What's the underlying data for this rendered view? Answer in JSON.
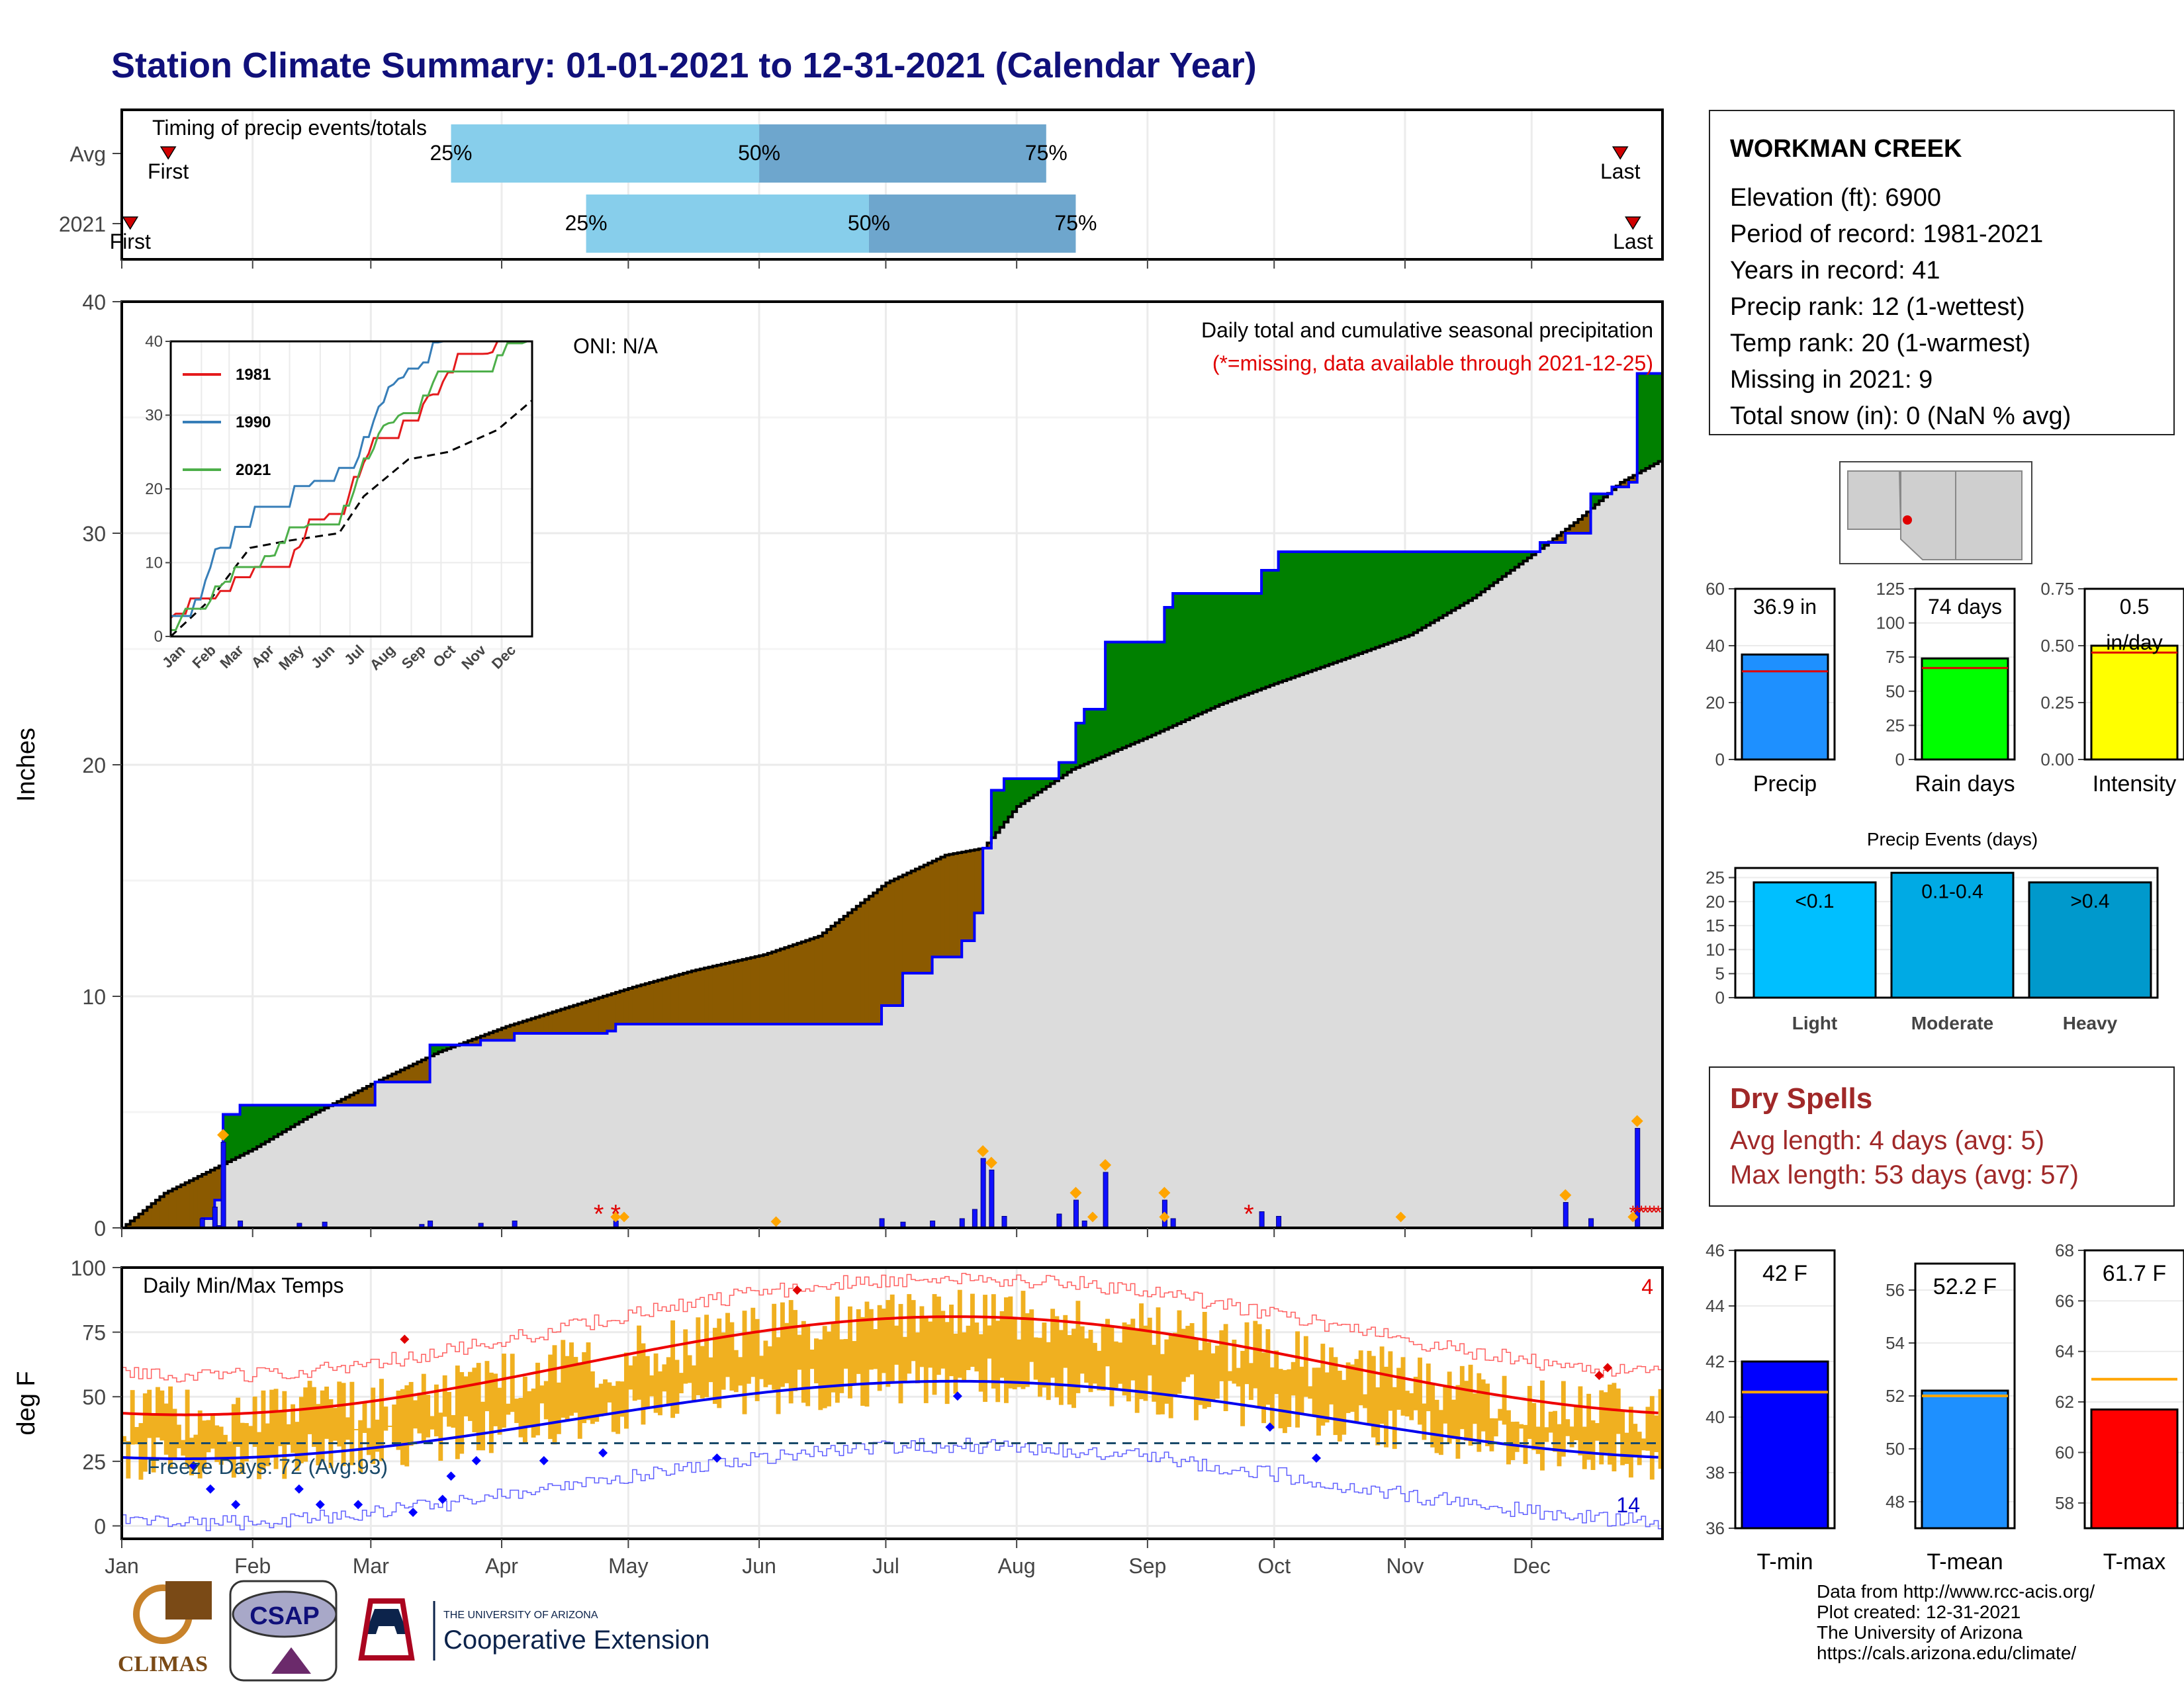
{
  "title": "Station Climate Summary: 01-01-2021 to 12-31-2021 (Calendar Year)",
  "station": {
    "name": "WORKMAN CREEK",
    "elevation": "Elevation (ft): 6900",
    "period": "Period of record: 1981-2021",
    "years": "Years in record: 41",
    "precip_rank": "Precip rank: 12 (1-wettest)",
    "temp_rank": "Temp rank: 20 (1-warmest)",
    "missing": "Missing in 2021: 9",
    "snow": "Total snow (in): 0 (NaN % avg)"
  },
  "dry_spells": {
    "title": "Dry Spells",
    "avg": "Avg length: 4 days (avg: 5)",
    "max": "Max length: 53 days (avg: 57)"
  },
  "credits": [
    "Data from http://www.rcc-acis.org/",
    "Plot created: 12-31-2021",
    "The University of Arizona",
    "https://cals.arizona.edu/climate/"
  ],
  "logos": {
    "climas": "CLIMAS",
    "csap": "CSAP",
    "ua_small": "THE UNIVERSITY OF ARIZONA",
    "ua_big": "Cooperative Extension"
  },
  "colors": {
    "title": "#10107a",
    "wetter": "#008000",
    "drier": "#8b5a00",
    "avg_fill": "#dcdcdc",
    "obs_line": "#0000ff",
    "temp_bar": "#f0b020",
    "dry_text": "#a02828"
  },
  "chart_data": [
    {
      "type": "bar",
      "name": "timing",
      "title": "Timing of precip events/totals",
      "rows": [
        {
          "label": "Avg",
          "first": 11,
          "p25": 78,
          "p50": 151,
          "p75": 219,
          "last": 355,
          "first_label": "First",
          "last_label": "Last"
        },
        {
          "label": "2021",
          "first": 2,
          "p25": 110,
          "p50": 177,
          "p75": 226,
          "last": 358,
          "first_label": "First",
          "last_label": "Last"
        }
      ],
      "pct_labels": [
        "25%",
        "50%",
        "75%"
      ]
    },
    {
      "type": "area",
      "name": "precip",
      "ylabel": "Inches",
      "ylim": [
        0,
        40
      ],
      "yticks": [
        0,
        10,
        20,
        30,
        40
      ],
      "title": "Daily total and cumulative seasonal precipitation",
      "subtitle": "(*=missing, data available through 2021-12-25)",
      "oni": "ONI: N/A",
      "avg_cumulative": [
        [
          0,
          0
        ],
        [
          10,
          1.5
        ],
        [
          31,
          3.4
        ],
        [
          45,
          4.9
        ],
        [
          60,
          6.3
        ],
        [
          75,
          7.6
        ],
        [
          91,
          8.7
        ],
        [
          105,
          9.5
        ],
        [
          121,
          10.4
        ],
        [
          135,
          11.1
        ],
        [
          152,
          11.8
        ],
        [
          165,
          12.6
        ],
        [
          181,
          14.9
        ],
        [
          195,
          16.1
        ],
        [
          204,
          16.4
        ],
        [
          212,
          18.2
        ],
        [
          225,
          19.8
        ],
        [
          243,
          21.2
        ],
        [
          260,
          22.6
        ],
        [
          273,
          23.5
        ],
        [
          290,
          24.6
        ],
        [
          305,
          25.6
        ],
        [
          320,
          27.2
        ],
        [
          335,
          29.2
        ],
        [
          345,
          30.6
        ],
        [
          355,
          32.2
        ],
        [
          364,
          33.1
        ]
      ],
      "obs_cumulative": [
        [
          0,
          0
        ],
        [
          19,
          0.4
        ],
        [
          22,
          1.2
        ],
        [
          24,
          4.9
        ],
        [
          28,
          5.3
        ],
        [
          37,
          5.3
        ],
        [
          60,
          6.3
        ],
        [
          71,
          6.3
        ],
        [
          73,
          7.9
        ],
        [
          85,
          8.1
        ],
        [
          93,
          8.4
        ],
        [
          115,
          8.5
        ],
        [
          117,
          8.8
        ],
        [
          180,
          9.6
        ],
        [
          185,
          11.0
        ],
        [
          192,
          11.7
        ],
        [
          199,
          12.4
        ],
        [
          202,
          13.6
        ],
        [
          204,
          16.4
        ],
        [
          206,
          18.9
        ],
        [
          209,
          19.4
        ],
        [
          220,
          19.4
        ],
        [
          222,
          20.1
        ],
        [
          226,
          21.8
        ],
        [
          228,
          22.4
        ],
        [
          233,
          25.3
        ],
        [
          243,
          25.3
        ],
        [
          247,
          26.8
        ],
        [
          249,
          27.4
        ],
        [
          268,
          27.4
        ],
        [
          270,
          28.4
        ],
        [
          274,
          29.2
        ],
        [
          291,
          29.2
        ],
        [
          336,
          29.6
        ],
        [
          342,
          30.0
        ],
        [
          348,
          31.7
        ],
        [
          353,
          32.0
        ],
        [
          357,
          32.2
        ],
        [
          359,
          36.9
        ],
        [
          364,
          36.9
        ]
      ],
      "daily": [
        [
          19,
          0.4
        ],
        [
          22,
          0.9
        ],
        [
          23,
          0.1
        ],
        [
          24,
          3.7
        ],
        [
          28,
          0.3
        ],
        [
          42,
          0.2
        ],
        [
          48,
          0.25
        ],
        [
          71,
          0.15
        ],
        [
          73,
          0.3
        ],
        [
          85,
          0.2
        ],
        [
          93,
          0.3
        ],
        [
          117,
          0.3
        ],
        [
          180,
          0.4
        ],
        [
          185,
          0.25
        ],
        [
          192,
          0.3
        ],
        [
          199,
          0.4
        ],
        [
          202,
          0.8
        ],
        [
          204,
          3.0
        ],
        [
          206,
          2.5
        ],
        [
          209,
          0.5
        ],
        [
          222,
          0.6
        ],
        [
          226,
          1.2
        ],
        [
          228,
          0.3
        ],
        [
          233,
          2.4
        ],
        [
          247,
          1.2
        ],
        [
          249,
          0.4
        ],
        [
          270,
          0.7
        ],
        [
          274,
          0.5
        ],
        [
          342,
          1.1
        ],
        [
          348,
          0.4
        ],
        [
          359,
          4.3
        ]
      ],
      "legend": [
        "1981",
        "1990",
        "2021"
      ]
    },
    {
      "type": "line",
      "name": "temps",
      "title": "Daily Min/Max Temps",
      "ylabel": "deg F",
      "ylim": [
        -5,
        100
      ],
      "yticks": [
        0,
        25,
        50,
        75,
        100
      ],
      "freeze_label": "Freeze Days: 72 (Avg:93)",
      "freeze_line": 32,
      "count_hot": "4",
      "count_cold": "14",
      "xlabels": [
        "Jan",
        "Feb",
        "Mar",
        "Apr",
        "May",
        "Jun",
        "Jul",
        "Aug",
        "Sep",
        "Oct",
        "Nov",
        "Dec"
      ]
    },
    {
      "type": "bar",
      "name": "summary_bars",
      "panels": [
        {
          "label": "Precip",
          "value": 36.9,
          "avg": 31,
          "text": "36.9 in",
          "ylim": [
            0,
            60
          ],
          "yticks": [
            "0",
            "20",
            "40",
            "60"
          ]
        },
        {
          "label": "Rain days",
          "value": 74,
          "avg": 67,
          "text": "74 days",
          "ylim": [
            0,
            125
          ],
          "yticks": [
            "0",
            "25",
            "50",
            "75",
            "100",
            "125"
          ]
        },
        {
          "label": "Intensity",
          "value": 0.5,
          "avg": 0.47,
          "text": "0.5",
          "text2": "in/day",
          "ylim": [
            0,
            0.75
          ],
          "yticks": [
            "0.00",
            "0.25",
            "0.50",
            "0.75"
          ]
        }
      ]
    },
    {
      "type": "bar",
      "name": "events",
      "title": "Precip Events (days)",
      "categories": [
        "Light",
        "Moderate",
        "Heavy"
      ],
      "labels": [
        "<0.1",
        "0.1-0.4",
        ">0.4"
      ],
      "values": [
        24,
        26,
        24
      ],
      "ylim": [
        0,
        25
      ],
      "yticks": [
        "0",
        "5",
        "10",
        "15",
        "20",
        "25"
      ]
    },
    {
      "type": "bar",
      "name": "temp_bars",
      "panels": [
        {
          "label": "T-min",
          "value": 42,
          "avg": 40.9,
          "text": "42 F",
          "ylim": [
            36,
            46
          ],
          "yticks": [
            "36",
            "38",
            "40",
            "42",
            "44",
            "46"
          ]
        },
        {
          "label": "T-mean",
          "value": 52.2,
          "avg": 52.0,
          "text": "52.2 F",
          "ylim": [
            47,
            57
          ],
          "yticks": [
            "48",
            "50",
            "52",
            "54",
            "56"
          ]
        },
        {
          "label": "T-max",
          "value": 61.7,
          "avg": 62.9,
          "text": "61.7 F",
          "ylim": [
            57,
            68
          ],
          "yticks": [
            "58",
            "60",
            "62",
            "64",
            "66",
            "68"
          ]
        }
      ]
    }
  ]
}
